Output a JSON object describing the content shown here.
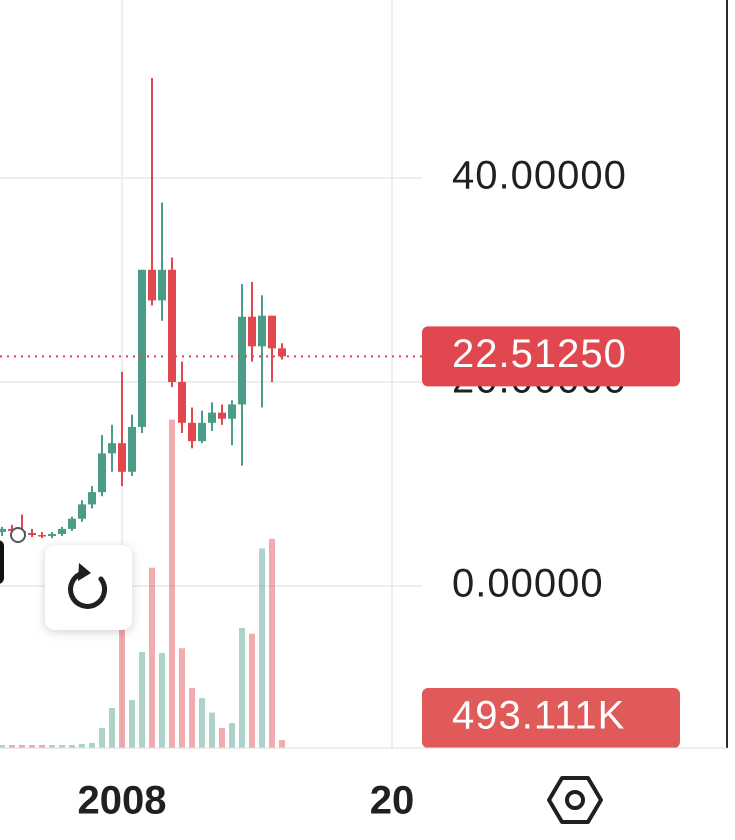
{
  "chart_data": {
    "type": "candlestick",
    "categories": [
      null,
      null,
      null,
      null,
      null,
      null,
      null,
      null,
      null,
      null,
      null,
      null,
      null,
      null,
      null,
      null,
      null,
      null,
      null,
      null,
      null,
      null,
      null,
      null,
      null,
      null,
      null,
      null,
      null
    ],
    "open": [
      5.3,
      5.6,
      5.4,
      5.2,
      5.0,
      4.9,
      5.1,
      5.6,
      6.6,
      8.0,
      9.2,
      13.0,
      14.0,
      11.2,
      15.6,
      31.0,
      28.0,
      31.0,
      20.0,
      16.0,
      14.2,
      16.0,
      17.0,
      16.4,
      17.8,
      26.4,
      23.5,
      26.5,
      23.3
    ],
    "high": [
      5.8,
      6.0,
      7.0,
      5.6,
      5.3,
      5.3,
      5.8,
      6.8,
      8.4,
      9.8,
      14.8,
      15.8,
      21.0,
      16.8,
      31.0,
      49.8,
      37.6,
      32.2,
      22.0,
      17.5,
      17.2,
      18.0,
      17.8,
      18.2,
      29.6,
      29.8,
      28.5,
      26.5,
      23.8
    ],
    "low": [
      4.9,
      5.2,
      5.0,
      4.8,
      4.7,
      4.7,
      4.9,
      5.4,
      6.3,
      7.6,
      8.8,
      11.2,
      9.8,
      10.8,
      15.0,
      27.5,
      26.0,
      19.5,
      15.0,
      13.5,
      14.0,
      15.2,
      15.8,
      13.8,
      11.8,
      22.0,
      17.5,
      20.0,
      22.2
    ],
    "close": [
      5.6,
      5.4,
      5.2,
      5.0,
      4.9,
      5.1,
      5.6,
      6.6,
      8.0,
      9.2,
      13.0,
      14.0,
      11.2,
      15.6,
      31.0,
      28.0,
      31.0,
      20.0,
      16.0,
      14.2,
      16.0,
      17.0,
      16.4,
      17.8,
      26.4,
      23.5,
      26.5,
      23.3,
      22.5125
    ],
    "close_labels": [
      null,
      null,
      null,
      null,
      null,
      null,
      null,
      null,
      null,
      null,
      null,
      null,
      null,
      null,
      null,
      null,
      null,
      null,
      null,
      null,
      null,
      null,
      null,
      null,
      null,
      null,
      null,
      null,
      "22.51250"
    ],
    "volume": [
      186000,
      186000,
      186000,
      186000,
      186000,
      186000,
      186000,
      186000,
      250000,
      310000,
      1240000,
      2490000,
      7460000,
      2980000,
      5960000,
      11200000,
      5900000,
      20400000,
      6200000,
      3730000,
      3100000,
      2200000,
      1240000,
      1550000,
      7460000,
      7100000,
      12400000,
      13000000,
      493111
    ],
    "volume_labels": [
      null,
      null,
      null,
      null,
      null,
      null,
      null,
      null,
      null,
      null,
      null,
      null,
      null,
      null,
      null,
      null,
      null,
      null,
      null,
      null,
      null,
      null,
      null,
      null,
      null,
      null,
      null,
      null,
      "493.111K"
    ],
    "up_color": "#4a9c86",
    "down_color": "#e0474f",
    "ylim": [
      -15.88,
      57.45
    ],
    "yticks": [
      {
        "value": 0,
        "label": "0.00000"
      },
      {
        "value": 20,
        "label": "20.00000"
      },
      {
        "value": 40,
        "label": "40.00000"
      }
    ],
    "vlim": [
      0,
      21000000
    ],
    "xticks": [
      {
        "value": 12,
        "label": "2008"
      },
      {
        "value": 39,
        "label": "20"
      }
    ],
    "grid": true
  }
}
